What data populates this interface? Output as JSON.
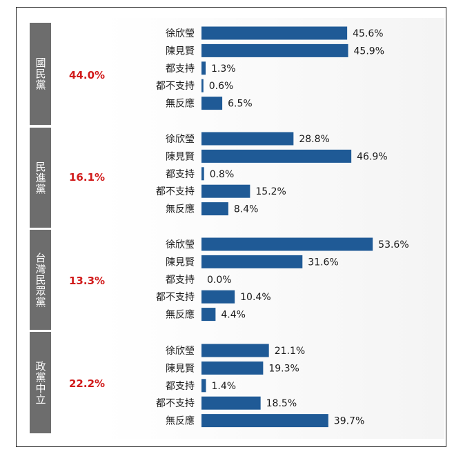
{
  "chart_data": {
    "type": "bar",
    "orientation": "horizontal",
    "bar_color": "#1f5a96",
    "group_label_color": "#6d6d6d",
    "share_color": "#d11a1a",
    "groups": [
      {
        "name": "國民黨",
        "share": "44.0%",
        "items": [
          {
            "label": "徐欣瑩",
            "value": 45.6,
            "text": "45.6%"
          },
          {
            "label": "陳見賢",
            "value": 45.9,
            "text": "45.9%"
          },
          {
            "label": "都支持",
            "value": 1.3,
            "text": "1.3%"
          },
          {
            "label": "都不支持",
            "value": 0.6,
            "text": "0.6%"
          },
          {
            "label": "無反應",
            "value": 6.5,
            "text": "6.5%"
          }
        ]
      },
      {
        "name": "民進黨",
        "share": "16.1%",
        "items": [
          {
            "label": "徐欣瑩",
            "value": 28.8,
            "text": "28.8%"
          },
          {
            "label": "陳見賢",
            "value": 46.9,
            "text": "46.9%"
          },
          {
            "label": "都支持",
            "value": 0.8,
            "text": "0.8%"
          },
          {
            "label": "都不支持",
            "value": 15.2,
            "text": "15.2%"
          },
          {
            "label": "無反應",
            "value": 8.4,
            "text": "8.4%"
          }
        ]
      },
      {
        "name": "台灣民眾黨",
        "share": "13.3%",
        "items": [
          {
            "label": "徐欣瑩",
            "value": 53.6,
            "text": "53.6%"
          },
          {
            "label": "陳見賢",
            "value": 31.6,
            "text": "31.6%"
          },
          {
            "label": "都支持",
            "value": 0.0,
            "text": "0.0%"
          },
          {
            "label": "都不支持",
            "value": 10.4,
            "text": "10.4%"
          },
          {
            "label": "無反應",
            "value": 4.4,
            "text": "4.4%"
          }
        ]
      },
      {
        "name": "政黨中立",
        "share": "22.2%",
        "items": [
          {
            "label": "徐欣瑩",
            "value": 21.1,
            "text": "21.1%"
          },
          {
            "label": "陳見賢",
            "value": 19.3,
            "text": "19.3%"
          },
          {
            "label": "都支持",
            "value": 1.4,
            "text": "1.4%"
          },
          {
            "label": "都不支持",
            "value": 18.5,
            "text": "18.5%"
          },
          {
            "label": "無反應",
            "value": 39.7,
            "text": "39.7%"
          }
        ]
      }
    ]
  }
}
